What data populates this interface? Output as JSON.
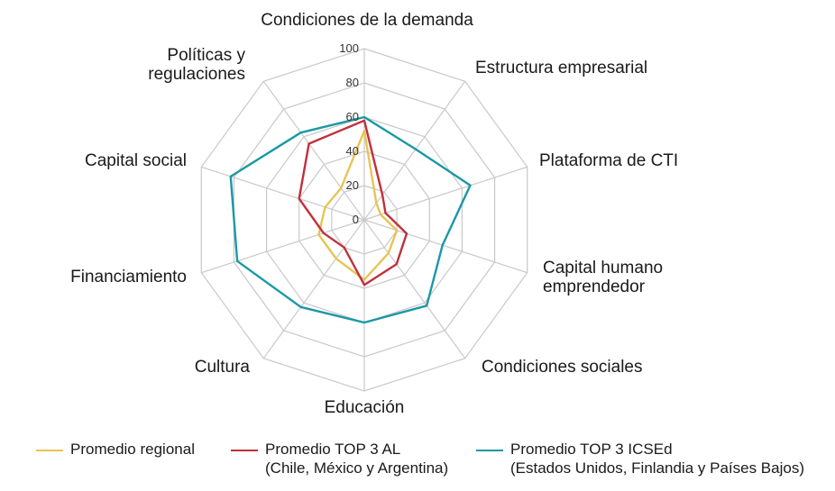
{
  "chart_data": {
    "type": "radar",
    "title": "",
    "categories": [
      [
        "Condiciones de la demanda"
      ],
      [
        "Estructura empresarial"
      ],
      [
        "Plataforma de CTI"
      ],
      [
        "Capital humano",
        "emprendedor"
      ],
      [
        "Condiciones sociales"
      ],
      [
        "Educación"
      ],
      [
        "Cultura"
      ],
      [
        "Financiamiento"
      ],
      [
        "Capital social"
      ],
      [
        "Políticas y",
        "regulaciones"
      ]
    ],
    "rlim": [
      0,
      100
    ],
    "ticks": [
      "0",
      "20",
      "40",
      "60",
      "80",
      "100"
    ],
    "tick_values": [
      0,
      20,
      40,
      60,
      80,
      100
    ],
    "grid": true,
    "legend_position": "bottom",
    "series": [
      {
        "name_lines": [
          "Promedio regional"
        ],
        "color": "#e8c454",
        "values": [
          52,
          12,
          10,
          20,
          24,
          35,
          28,
          28,
          24,
          23
        ]
      },
      {
        "name_lines": [
          "Promedio TOP 3 AL",
          "(Chile, México y Argentina)"
        ],
        "color": "#c0303c",
        "values": [
          58,
          18,
          13,
          26,
          32,
          38,
          20,
          25,
          40,
          55
        ]
      },
      {
        "name_lines": [
          "Promedio TOP 3 ICSEd",
          "(Estados Unidos, Finlandia y Países Bajos)"
        ],
        "color": "#1a98a6",
        "values": [
          60,
          51,
          65,
          48,
          62,
          60,
          63,
          78,
          82,
          63
        ]
      }
    ]
  }
}
